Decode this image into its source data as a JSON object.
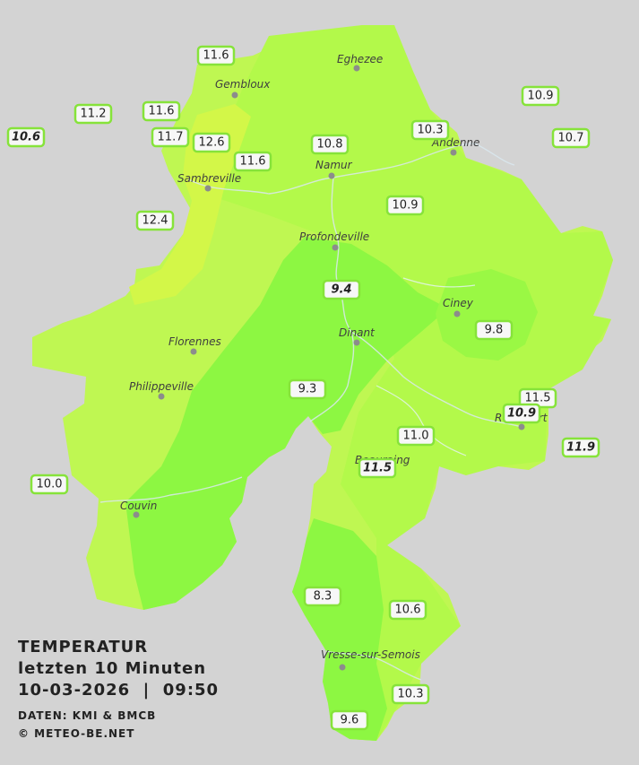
{
  "legend": {
    "title": "TEMPERATUR",
    "subtitle": "letzten 10 Minuten",
    "datetime": "10-03-2026  |  09:50",
    "source": "DATEN: KMI & BMCB",
    "copyright": "© METEO-BE.NET"
  },
  "colors": {
    "background": "#d3d3d3",
    "zone_warm": "#bff752",
    "zone_mild": "#a9fb44",
    "zone_cool": "#8df742",
    "zone_hot": "#d3f748",
    "badge_border": "#86e33a"
  },
  "cities": [
    {
      "name": "Eghezee"
    },
    {
      "name": "Gembloux"
    },
    {
      "name": "Andenne"
    },
    {
      "name": "Namur"
    },
    {
      "name": "Sambreville"
    },
    {
      "name": "Profondeville"
    },
    {
      "name": "Ciney"
    },
    {
      "name": "Dinant"
    },
    {
      "name": "Florennes"
    },
    {
      "name": "Philippeville"
    },
    {
      "name": "Beauraing"
    },
    {
      "name": "Rochefort"
    },
    {
      "name": "Couvin"
    },
    {
      "name": "Vresse-sur-Semois"
    }
  ],
  "stations": [
    {
      "value": "11.6",
      "italic": false
    },
    {
      "value": "11.2",
      "italic": false
    },
    {
      "value": "11.6",
      "italic": false
    },
    {
      "value": "10.6",
      "italic": true
    },
    {
      "value": "11.7",
      "italic": false
    },
    {
      "value": "12.6",
      "italic": false
    },
    {
      "value": "11.6",
      "italic": false
    },
    {
      "value": "10.8",
      "italic": false
    },
    {
      "value": "10.3",
      "italic": false
    },
    {
      "value": "10.9",
      "italic": false
    },
    {
      "value": "10.7",
      "italic": false
    },
    {
      "value": "10.9",
      "italic": false
    },
    {
      "value": "12.4",
      "italic": false
    },
    {
      "value": "9.4",
      "italic": true
    },
    {
      "value": "9.8",
      "italic": false
    },
    {
      "value": "9.3",
      "italic": false
    },
    {
      "value": "11.5",
      "italic": false
    },
    {
      "value": "10.9",
      "italic": true
    },
    {
      "value": "11.0",
      "italic": false
    },
    {
      "value": "11.9",
      "italic": true
    },
    {
      "value": "11.5",
      "italic": true
    },
    {
      "value": "10.0",
      "italic": false
    },
    {
      "value": "8.3",
      "italic": false
    },
    {
      "value": "10.6",
      "italic": false
    },
    {
      "value": "10.3",
      "italic": false
    },
    {
      "value": "9.6",
      "italic": false
    }
  ]
}
